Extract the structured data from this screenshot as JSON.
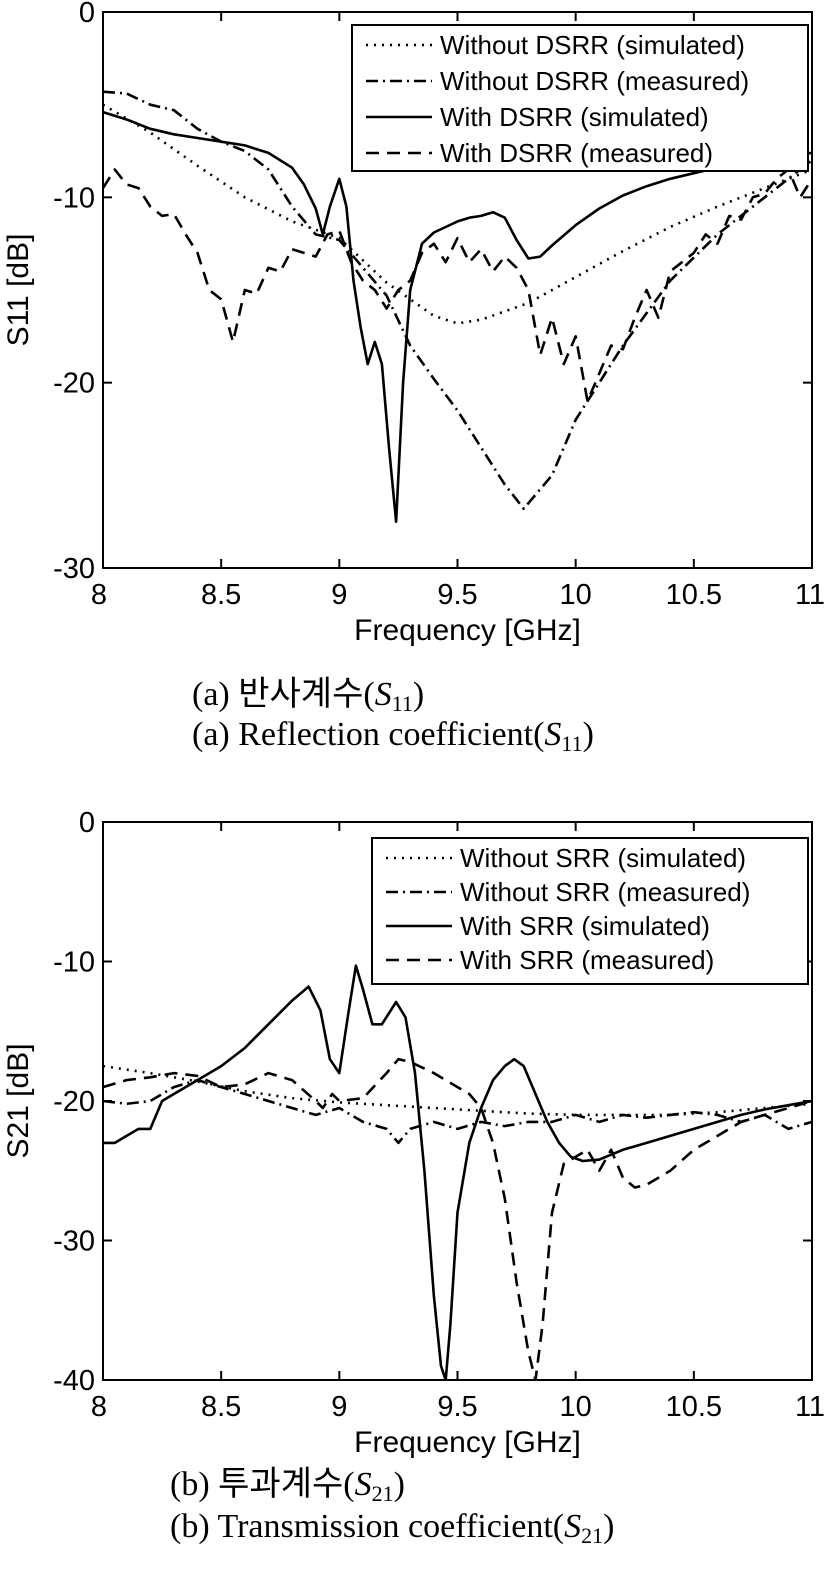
{
  "charts": [
    {
      "id": "a",
      "caption_korean": {
        "prefix": "(a)  반사계수(",
        "symbol": "S",
        "sub": "11",
        "suffix": ")"
      },
      "caption_english": {
        "prefix": "(a)  Reflection  coefficient(",
        "symbol": "S",
        "sub": "11",
        "suffix": ")"
      }
    },
    {
      "id": "b",
      "caption_korean": {
        "prefix": "(b)  투과계수(",
        "symbol": "S",
        "sub": "21",
        "suffix": ")"
      },
      "caption_english": {
        "prefix": "(b)  Transmission  coefficient(",
        "symbol": "S",
        "sub": "21",
        "suffix": ")"
      }
    }
  ],
  "chart_data": [
    {
      "type": "line",
      "xlabel": "Frequency [GHz]",
      "ylabel": "S11 [dB]",
      "xlim": [
        8,
        11
      ],
      "ylim": [
        -30,
        0
      ],
      "xticks": [
        8,
        8.5,
        9,
        9.5,
        10,
        10.5,
        11
      ],
      "xtick_labels": [
        "8",
        "8.5",
        "9",
        "9.5",
        "10",
        "10.5",
        "11"
      ],
      "yticks": [
        0,
        -10,
        -20,
        -30
      ],
      "ytick_labels": [
        "0",
        "-10",
        "-20",
        "-30"
      ],
      "grid": false,
      "legend_position": "top-right",
      "series": [
        {
          "name": "Without DSRR (simulated)",
          "style": "dotted",
          "color": "#000000",
          "x": [
            8.0,
            8.2,
            8.4,
            8.6,
            8.8,
            9.0,
            9.2,
            9.4,
            9.5,
            9.6,
            9.8,
            10.0,
            10.2,
            10.4,
            10.6,
            10.8,
            11.0
          ],
          "y": [
            -5.0,
            -6.5,
            -8.3,
            -10.0,
            -11.3,
            -12.2,
            -14.6,
            -16.4,
            -16.8,
            -16.6,
            -15.7,
            -14.3,
            -12.9,
            -11.6,
            -10.5,
            -9.5,
            -8.5
          ]
        },
        {
          "name": "Without DSRR (measured)",
          "style": "dashdot",
          "color": "#000000",
          "x": [
            8.0,
            8.1,
            8.2,
            8.3,
            8.4,
            8.5,
            8.6,
            8.7,
            8.8,
            8.9,
            9.0,
            9.1,
            9.2,
            9.3,
            9.4,
            9.5,
            9.6,
            9.7,
            9.78,
            9.9,
            10.0,
            10.2,
            10.4,
            10.6,
            10.8,
            11.0
          ],
          "y": [
            -4.3,
            -4.4,
            -5.0,
            -5.3,
            -6.3,
            -7.0,
            -7.5,
            -8.5,
            -10.5,
            -12.0,
            -12.3,
            -13.8,
            -15.3,
            -18.0,
            -19.8,
            -21.5,
            -23.5,
            -25.5,
            -26.8,
            -25.0,
            -22.0,
            -18.0,
            -14.5,
            -12.0,
            -10.0,
            -8.0
          ]
        },
        {
          "name": "With DSRR (simulated)",
          "style": "solid",
          "color": "#000000",
          "x": [
            8.0,
            8.1,
            8.2,
            8.3,
            8.4,
            8.5,
            8.6,
            8.7,
            8.8,
            8.85,
            8.9,
            8.93,
            8.96,
            9.0,
            9.03,
            9.06,
            9.09,
            9.12,
            9.15,
            9.18,
            9.21,
            9.24,
            9.27,
            9.3,
            9.35,
            9.4,
            9.45,
            9.5,
            9.55,
            9.6,
            9.65,
            9.7,
            9.75,
            9.8,
            9.85,
            9.9,
            10.0,
            10.1,
            10.2,
            10.3,
            10.4,
            10.5,
            10.6,
            10.7,
            10.8,
            10.9,
            11.0
          ],
          "y": [
            -5.4,
            -5.8,
            -6.3,
            -6.6,
            -6.8,
            -7.0,
            -7.2,
            -7.6,
            -8.4,
            -9.3,
            -10.6,
            -12.0,
            -10.5,
            -9.0,
            -10.5,
            -14.5,
            -17.0,
            -19.0,
            -17.8,
            -19.0,
            -23.5,
            -27.5,
            -20.0,
            -15.0,
            -12.5,
            -11.9,
            -11.6,
            -11.3,
            -11.1,
            -11.0,
            -10.8,
            -11.1,
            -12.3,
            -13.3,
            -13.2,
            -12.6,
            -11.5,
            -10.6,
            -9.9,
            -9.4,
            -9.0,
            -8.7,
            -8.4,
            -8.1,
            -7.9,
            -7.7,
            -7.6
          ]
        },
        {
          "name": "With DSRR (measured)",
          "style": "dashed",
          "color": "#000000",
          "x": [
            8.0,
            8.05,
            8.1,
            8.15,
            8.2,
            8.25,
            8.3,
            8.35,
            8.4,
            8.45,
            8.5,
            8.55,
            8.6,
            8.65,
            8.7,
            8.75,
            8.8,
            8.85,
            8.9,
            8.95,
            9.0,
            9.05,
            9.1,
            9.15,
            9.2,
            9.25,
            9.3,
            9.35,
            9.4,
            9.45,
            9.5,
            9.55,
            9.6,
            9.65,
            9.7,
            9.75,
            9.8,
            9.85,
            9.9,
            9.95,
            10.0,
            10.05,
            10.1,
            10.15,
            10.2,
            10.25,
            10.3,
            10.35,
            10.4,
            10.45,
            10.5,
            10.55,
            10.6,
            10.65,
            10.7,
            10.75,
            10.8,
            10.85,
            10.9,
            10.95,
            11.0
          ],
          "y": [
            -9.5,
            -8.5,
            -9.3,
            -9.5,
            -10.5,
            -11.0,
            -10.9,
            -12.0,
            -13.0,
            -15.0,
            -15.5,
            -17.8,
            -15.0,
            -15.2,
            -13.8,
            -14.0,
            -12.8,
            -13.0,
            -13.2,
            -12.0,
            -11.8,
            -13.5,
            -14.5,
            -15.0,
            -16.0,
            -15.0,
            -14.5,
            -13.0,
            -12.5,
            -13.5,
            -12.2,
            -13.5,
            -12.8,
            -14.0,
            -13.2,
            -13.8,
            -15.0,
            -18.5,
            -16.5,
            -19.0,
            -17.5,
            -21.0,
            -19.5,
            -18.0,
            -18.2,
            -16.5,
            -15.0,
            -16.5,
            -14.0,
            -13.5,
            -13.0,
            -12.0,
            -12.5,
            -11.0,
            -11.2,
            -10.0,
            -9.8,
            -9.0,
            -8.5,
            -10.0,
            -9.0
          ]
        }
      ]
    },
    {
      "type": "line",
      "xlabel": "Frequency [GHz]",
      "ylabel": "S21 [dB]",
      "xlim": [
        8,
        11
      ],
      "ylim": [
        -40,
        0
      ],
      "xticks": [
        8,
        8.5,
        9,
        9.5,
        10,
        10.5,
        11
      ],
      "xtick_labels": [
        "8",
        "8.5",
        "9",
        "9.5",
        "10",
        "10.5",
        "11"
      ],
      "yticks": [
        0,
        -10,
        -20,
        -30,
        -40
      ],
      "ytick_labels": [
        "0",
        "-10",
        "-20",
        "-30",
        "-40"
      ],
      "grid": false,
      "legend_position": "top-right",
      "series": [
        {
          "name": "Without SRR (simulated)",
          "style": "dotted",
          "color": "#000000",
          "x": [
            8.0,
            8.2,
            8.4,
            8.6,
            8.8,
            9.0,
            9.2,
            9.4,
            9.6,
            9.8,
            10.0,
            10.2,
            10.4,
            10.6,
            10.8,
            11.0
          ],
          "y": [
            -17.5,
            -18.0,
            -18.6,
            -19.3,
            -19.8,
            -20.1,
            -20.3,
            -20.5,
            -20.7,
            -20.9,
            -21.0,
            -21.0,
            -21.0,
            -20.8,
            -20.5,
            -20.2
          ]
        },
        {
          "name": "Without SRR (measured)",
          "style": "dashdot",
          "color": "#000000",
          "x": [
            8.0,
            8.1,
            8.2,
            8.3,
            8.4,
            8.5,
            8.6,
            8.7,
            8.8,
            8.9,
            9.0,
            9.1,
            9.2,
            9.25,
            9.3,
            9.4,
            9.5,
            9.6,
            9.7,
            9.8,
            9.9,
            10.0,
            10.1,
            10.2,
            10.3,
            10.4,
            10.5,
            10.6,
            10.7,
            10.8,
            10.9,
            11.0
          ],
          "y": [
            -20.0,
            -20.2,
            -20.0,
            -19.0,
            -18.5,
            -19.0,
            -19.5,
            -20.0,
            -20.5,
            -21.0,
            -20.5,
            -21.5,
            -22.0,
            -23.0,
            -22.0,
            -21.5,
            -22.0,
            -21.5,
            -21.8,
            -21.5,
            -21.5,
            -21.0,
            -21.5,
            -21.0,
            -21.2,
            -21.0,
            -20.8,
            -21.0,
            -21.5,
            -21.0,
            -22.0,
            -21.5
          ]
        },
        {
          "name": "With SRR (simulated)",
          "style": "solid",
          "color": "#000000",
          "x": [
            8.0,
            8.05,
            8.1,
            8.15,
            8.2,
            8.25,
            8.3,
            8.4,
            8.5,
            8.6,
            8.7,
            8.8,
            8.87,
            8.92,
            8.96,
            9.0,
            9.04,
            9.07,
            9.1,
            9.14,
            9.18,
            9.24,
            9.28,
            9.32,
            9.36,
            9.4,
            9.43,
            9.45,
            9.47,
            9.5,
            9.55,
            9.6,
            9.65,
            9.7,
            9.74,
            9.78,
            9.83,
            9.88,
            9.93,
            9.98,
            10.03,
            10.1,
            10.2,
            10.3,
            10.4,
            10.5,
            10.6,
            10.7,
            10.8,
            10.9,
            11.0
          ],
          "y": [
            -23.0,
            -23.0,
            -22.5,
            -22.0,
            -22.0,
            -20.0,
            -19.5,
            -18.5,
            -17.5,
            -16.2,
            -14.5,
            -12.8,
            -11.8,
            -13.5,
            -17.0,
            -18.0,
            -13.5,
            -10.3,
            -12.0,
            -14.5,
            -14.5,
            -12.9,
            -14.0,
            -18.0,
            -25.0,
            -34.0,
            -39.0,
            -40.0,
            -36.0,
            -28.0,
            -23.0,
            -20.5,
            -18.5,
            -17.5,
            -17.0,
            -17.5,
            -19.5,
            -21.5,
            -23.0,
            -24.0,
            -24.3,
            -24.2,
            -23.5,
            -23.0,
            -22.5,
            -22.0,
            -21.5,
            -21.0,
            -20.6,
            -20.3,
            -20.0
          ]
        },
        {
          "name": "With SRR (measured)",
          "style": "dashed",
          "color": "#000000",
          "x": [
            8.0,
            8.1,
            8.2,
            8.3,
            8.4,
            8.5,
            8.6,
            8.7,
            8.8,
            8.9,
            8.93,
            8.97,
            9.0,
            9.1,
            9.2,
            9.25,
            9.3,
            9.4,
            9.5,
            9.55,
            9.6,
            9.65,
            9.7,
            9.75,
            9.8,
            9.83,
            9.86,
            9.9,
            9.95,
            10.0,
            10.05,
            10.1,
            10.15,
            10.2,
            10.25,
            10.3,
            10.4,
            10.5,
            10.6,
            10.7,
            10.8,
            10.9,
            11.0
          ],
          "y": [
            -19.0,
            -18.5,
            -18.3,
            -18.0,
            -18.2,
            -19.0,
            -18.8,
            -18.0,
            -18.5,
            -20.0,
            -20.5,
            -19.5,
            -20.0,
            -19.8,
            -18.0,
            -17.0,
            -17.2,
            -18.0,
            -19.0,
            -19.5,
            -20.5,
            -23.0,
            -27.0,
            -33.0,
            -38.0,
            -40.0,
            -36.0,
            -28.0,
            -24.5,
            -24.0,
            -23.5,
            -25.0,
            -23.5,
            -25.5,
            -26.2,
            -26.0,
            -25.0,
            -23.5,
            -22.5,
            -21.5,
            -21.0,
            -20.5,
            -20.0
          ]
        }
      ]
    }
  ]
}
